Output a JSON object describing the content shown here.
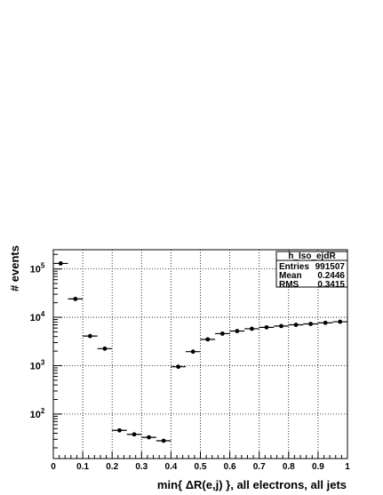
{
  "stats_box": {
    "title": "h_Iso_ejdR",
    "rows": [
      {
        "label": "Entries",
        "value": "991507"
      },
      {
        "label": "Mean",
        "value": "0.2446"
      },
      {
        "label": "RMS",
        "value": "0.3415"
      }
    ]
  },
  "chart_data": {
    "type": "scatter",
    "xlabel": "min{ ΔR(e,j) }, all electrons, all jets",
    "ylabel": "# events",
    "xlim": [
      0,
      1
    ],
    "ylim": [
      12,
      250000
    ],
    "y_scale": "log",
    "grid": true,
    "x_ticks": [
      "0",
      "0.1",
      "0.2",
      "0.3",
      "0.4",
      "0.5",
      "0.6",
      "0.7",
      "0.8",
      "0.9",
      "1"
    ],
    "y_ticks": [
      {
        "base": "10",
        "exp": "2",
        "value": 100
      },
      {
        "base": "10",
        "exp": "3",
        "value": 1000
      },
      {
        "base": "10",
        "exp": "4",
        "value": 10000
      },
      {
        "base": "10",
        "exp": "5",
        "value": 100000
      }
    ],
    "bin_width": 0.05,
    "x": [
      0.025,
      0.075,
      0.125,
      0.175,
      0.225,
      0.275,
      0.325,
      0.375,
      0.425,
      0.475,
      0.525,
      0.575,
      0.625,
      0.675,
      0.725,
      0.775,
      0.825,
      0.875,
      0.925,
      0.975
    ],
    "y": [
      130000,
      24000,
      4100,
      2250,
      46,
      38,
      33,
      28,
      950,
      1950,
      3500,
      4600,
      5200,
      5800,
      6200,
      6600,
      7000,
      7300,
      7700,
      8100
    ]
  }
}
